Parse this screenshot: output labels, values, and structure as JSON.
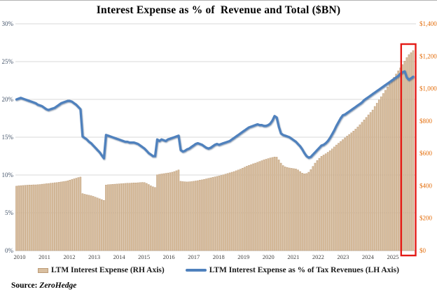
{
  "title": "Interest Expense as % of  Revenue and Total ($BN)",
  "source": {
    "prefix": "Source: ",
    "name": "ZeroHedge"
  },
  "legend": [
    {
      "label": "LTM Interest Expense (RH Axis)",
      "type": "bar",
      "color": "#d9bfa0"
    },
    {
      "label": "LTM Interest Expense as % of Tax Revenues (LH Axis)",
      "type": "line",
      "color": "#4f81bd"
    }
  ],
  "colors": {
    "bar_fill": "#d9bfa0",
    "bar_stroke": "#bd9c77",
    "line": "#4f81bd",
    "grid": "#d9d9d9",
    "baseline": "#c6c6c6",
    "left_axis_label": "#44546a",
    "right_axis_label": "#e36c09",
    "year_label": "#404040",
    "highlight_box": "#e41b17"
  },
  "axes": {
    "left_ticks": [
      "30%",
      "25%",
      "20%",
      "15%",
      "10%",
      "5%",
      "0%"
    ],
    "right_ticks": [
      "$1,400",
      "$1,200",
      "$1,000",
      "$800",
      "$600",
      "$400",
      "$200",
      "$0"
    ],
    "years": [
      "2010",
      "2011",
      "2012",
      "2013",
      "2014",
      "2015",
      "2016",
      "2017",
      "2018",
      "2019",
      "2020",
      "2021",
      "2022",
      "2023",
      "2024",
      "2025"
    ]
  },
  "chart_data": {
    "type": "combo-bar-line",
    "x_frequency": "monthly",
    "x_start": "2010-01",
    "x_end": "2025-07",
    "ylim_left_percent": [
      0,
      30
    ],
    "ylim_right_billions": [
      0,
      1400
    ],
    "grid": "horizontal-left-axis-only",
    "legend_position": "bottom-center",
    "highlight": {
      "note": "red box around most recent months",
      "from_month_index": 182,
      "to_month_index": 186
    },
    "series": [
      {
        "name": "LTM Interest Expense (RH Axis)",
        "type": "bar",
        "axis": "right",
        "unit": "$BN",
        "values": [
          398,
          400,
          401,
          402,
          403,
          404,
          405,
          405,
          406,
          406,
          407,
          408,
          410,
          411,
          413,
          414,
          416,
          417,
          419,
          420,
          422,
          424,
          426,
          428,
          431,
          435,
          439,
          443,
          447,
          451,
          454,
          352,
          348,
          345,
          342,
          339,
          335,
          330,
          325,
          320,
          315,
          310,
          405,
          407,
          408,
          409,
          410,
          411,
          412,
          413,
          414,
          415,
          416,
          416,
          417,
          418,
          418,
          419,
          420,
          421,
          420,
          415,
          408,
          400,
          394,
          390,
          468,
          471,
          473,
          475,
          477,
          479,
          481,
          484,
          488,
          493,
          498,
          428,
          426,
          425,
          424,
          425,
          426,
          428,
          430,
          432,
          435,
          437,
          440,
          443,
          446,
          449,
          452,
          455,
          458,
          461,
          464,
          468,
          472,
          476,
          480,
          484,
          488,
          493,
          498,
          503,
          509,
          515,
          521,
          526,
          531,
          536,
          540,
          545,
          550,
          555,
          560,
          564,
          568,
          572,
          575,
          578,
          577,
          560,
          540,
          525,
          517,
          513,
          510,
          508,
          506,
          504,
          498,
          488,
          478,
          474,
          476,
          484,
          500,
          520,
          540,
          556,
          570,
          582,
          590,
          598,
          607,
          617,
          628,
          640,
          652,
          663,
          674,
          685,
          696,
          707,
          717,
          727,
          738,
          750,
          763,
          777,
          792,
          807,
          822,
          838,
          853,
          868,
          890,
          910,
          930,
          950,
          970,
          990,
          1010,
          1030,
          1050,
          1070,
          1090,
          1110,
          1128,
          1148,
          1170,
          1192,
          1210,
          1222,
          1235
        ]
      },
      {
        "name": "LTM Interest Expense as % of Tax Revenues (LH Axis)",
        "type": "line",
        "axis": "left",
        "unit": "%",
        "values": [
          20.0,
          20.1,
          20.2,
          20.1,
          20.0,
          19.9,
          19.8,
          19.7,
          19.6,
          19.5,
          19.3,
          19.2,
          19.1,
          18.9,
          18.7,
          18.6,
          18.7,
          18.8,
          18.9,
          19.1,
          19.3,
          19.5,
          19.6,
          19.7,
          19.8,
          19.8,
          19.7,
          19.5,
          19.3,
          19.0,
          18.7,
          15.1,
          14.9,
          14.7,
          14.4,
          14.2,
          13.9,
          13.6,
          13.3,
          13.0,
          12.6,
          12.2,
          15.3,
          15.2,
          15.1,
          15.0,
          14.9,
          14.8,
          14.7,
          14.6,
          14.5,
          14.4,
          14.4,
          14.3,
          14.3,
          14.3,
          14.2,
          14.1,
          13.9,
          13.7,
          13.5,
          13.2,
          12.9,
          12.7,
          12.5,
          12.5,
          14.7,
          14.5,
          14.7,
          14.6,
          14.5,
          14.7,
          14.8,
          14.9,
          15.0,
          15.1,
          15.2,
          13.3,
          13.1,
          13.2,
          13.4,
          13.5,
          13.7,
          13.9,
          14.1,
          14.2,
          14.1,
          14.0,
          13.8,
          13.6,
          13.5,
          13.6,
          13.8,
          14.0,
          14.1,
          14.0,
          14.1,
          14.2,
          14.3,
          14.4,
          14.5,
          14.7,
          14.9,
          15.1,
          15.3,
          15.5,
          15.7,
          15.9,
          16.1,
          16.3,
          16.4,
          16.5,
          16.6,
          16.7,
          16.6,
          16.6,
          16.5,
          16.5,
          16.6,
          16.8,
          17.2,
          17.8,
          17.6,
          16.4,
          15.5,
          15.3,
          15.2,
          15.1,
          15.0,
          14.8,
          14.6,
          14.4,
          14.1,
          13.8,
          13.4,
          12.9,
          12.5,
          12.3,
          12.4,
          12.7,
          13.0,
          13.3,
          13.6,
          13.9,
          14.0,
          14.2,
          14.5,
          14.9,
          15.4,
          15.9,
          16.5,
          17.0,
          17.5,
          17.9,
          18.0,
          18.2,
          18.4,
          18.6,
          18.8,
          19.0,
          19.2,
          19.4,
          19.6,
          19.9,
          20.1,
          20.3,
          20.5,
          20.7,
          20.9,
          21.1,
          21.3,
          21.5,
          21.7,
          21.9,
          22.1,
          22.3,
          22.5,
          22.7,
          22.9,
          23.1,
          23.4,
          23.6,
          23.7,
          22.9,
          22.6,
          22.8,
          23.0
        ]
      }
    ]
  }
}
